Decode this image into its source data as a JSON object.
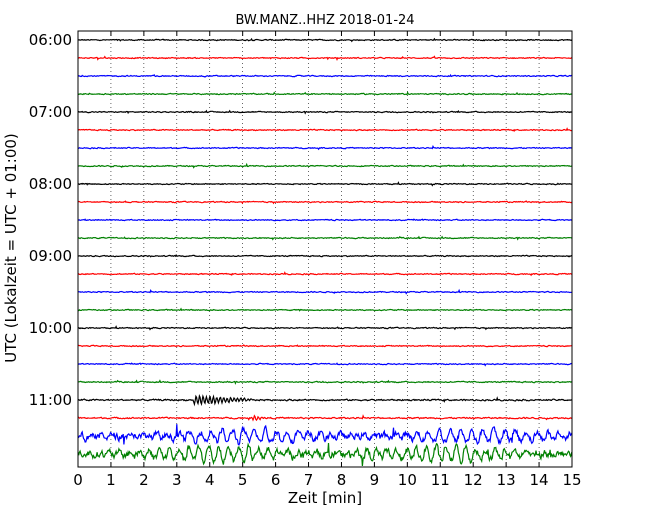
{
  "chart_data": {
    "type": "line",
    "title": "BW.MANZ..HHZ 2018-01-24",
    "xlabel": "Zeit  [min]",
    "ylabel": "UTC (Lokalzeit = UTC + 01:00)",
    "xlim": [
      0,
      15
    ],
    "x_ticks": [
      "0",
      "1",
      "2",
      "3",
      "4",
      "5",
      "6",
      "7",
      "8",
      "9",
      "10",
      "11",
      "12",
      "13",
      "14",
      "15"
    ],
    "y_ticks": [
      "06:00",
      "07:00",
      "08:00",
      "09:00",
      "10:00",
      "11:00"
    ],
    "grid": "vertical dotted",
    "traces_per_hour": 4,
    "minutes_per_trace": 15,
    "colors": [
      "#000000",
      "#ff0000",
      "#0000ff",
      "#008000"
    ],
    "series": [
      {
        "start": "06:00",
        "color": "#000000",
        "amplitude": 1.0
      },
      {
        "start": "06:15",
        "color": "#ff0000",
        "amplitude": 1.0
      },
      {
        "start": "06:30",
        "color": "#0000ff",
        "amplitude": 1.0
      },
      {
        "start": "06:45",
        "color": "#008000",
        "amplitude": 1.0
      },
      {
        "start": "07:00",
        "color": "#000000",
        "amplitude": 1.0
      },
      {
        "start": "07:15",
        "color": "#ff0000",
        "amplitude": 1.0
      },
      {
        "start": "07:30",
        "color": "#0000ff",
        "amplitude": 1.0
      },
      {
        "start": "07:45",
        "color": "#008000",
        "amplitude": 1.0
      },
      {
        "start": "08:00",
        "color": "#000000",
        "amplitude": 1.0
      },
      {
        "start": "08:15",
        "color": "#ff0000",
        "amplitude": 1.0
      },
      {
        "start": "08:30",
        "color": "#0000ff",
        "amplitude": 1.0
      },
      {
        "start": "08:45",
        "color": "#008000",
        "amplitude": 1.0
      },
      {
        "start": "09:00",
        "color": "#000000",
        "amplitude": 1.0
      },
      {
        "start": "09:15",
        "color": "#ff0000",
        "amplitude": 1.0
      },
      {
        "start": "09:30",
        "color": "#0000ff",
        "amplitude": 1.0
      },
      {
        "start": "09:45",
        "color": "#008000",
        "amplitude": 1.0
      },
      {
        "start": "10:00",
        "color": "#000000",
        "amplitude": 1.0
      },
      {
        "start": "10:15",
        "color": "#ff0000",
        "amplitude": 1.0
      },
      {
        "start": "10:30",
        "color": "#0000ff",
        "amplitude": 1.0
      },
      {
        "start": "10:45",
        "color": "#008000",
        "amplitude": 1.1
      },
      {
        "start": "11:00",
        "color": "#000000",
        "amplitude": 1.4,
        "event": {
          "start_min": 3.5,
          "end_min": 5.5,
          "amplitude": 4.5
        }
      },
      {
        "start": "11:15",
        "color": "#ff0000",
        "amplitude": 1.3,
        "event": {
          "start_min": 5.3,
          "end_min": 5.8,
          "amplitude": 2.5
        }
      },
      {
        "start": "11:30",
        "color": "#0000ff",
        "amplitude": 6.5,
        "period_min": 0.33
      },
      {
        "start": "11:45",
        "color": "#008000",
        "amplitude": 7.0,
        "period_min": 0.3
      }
    ]
  }
}
